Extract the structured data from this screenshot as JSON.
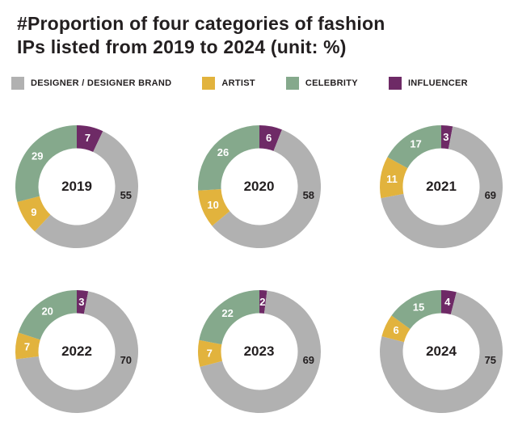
{
  "title": {
    "line1": "#Proportion of four categories of fashion",
    "line2": "IPs listed from 2019 to 2024 (unit: %)"
  },
  "legend": [
    {
      "key": "designer",
      "label": "DESIGNER / DESIGNER BRAND",
      "color": "#b1b1b1"
    },
    {
      "key": "artist",
      "label": "ARTIST",
      "color": "#e2b33d"
    },
    {
      "key": "celebrity",
      "label": "CELEBRITY",
      "color": "#85a98c"
    },
    {
      "key": "influencer",
      "label": "INFLUENCER",
      "color": "#6e2a66"
    }
  ],
  "chart_data": {
    "type": "pie",
    "subtype": "donut-grid",
    "unit": "%",
    "title": "#Proportion of four categories of fashion IPs listed from 2019 to 2024 (unit: %)",
    "categories": [
      "DESIGNER / DESIGNER BRAND",
      "ARTIST",
      "CELEBRITY",
      "INFLUENCER"
    ],
    "segment_order": [
      "influencer",
      "designer",
      "artist",
      "celebrity"
    ],
    "start_angle_deg": 0,
    "direction": "clockwise",
    "colors": {
      "designer": "#b1b1b1",
      "artist": "#e2b33d",
      "celebrity": "#85a98c",
      "influencer": "#6e2a66"
    },
    "value_label_colors": {
      "designer": "#231f20",
      "artist": "#ffffff",
      "celebrity": "#ffffff",
      "influencer": "#ffffff"
    },
    "charts": [
      {
        "year": "2019",
        "values": {
          "designer": 55,
          "artist": 9,
          "celebrity": 29,
          "influencer": 7
        }
      },
      {
        "year": "2020",
        "values": {
          "designer": 58,
          "artist": 10,
          "celebrity": 26,
          "influencer": 6
        }
      },
      {
        "year": "2021",
        "values": {
          "designer": 69,
          "artist": 11,
          "celebrity": 17,
          "influencer": 3
        }
      },
      {
        "year": "2022",
        "values": {
          "designer": 70,
          "artist": 7,
          "celebrity": 20,
          "influencer": 3
        }
      },
      {
        "year": "2023",
        "values": {
          "designer": 69,
          "artist": 7,
          "celebrity": 22,
          "influencer": 2
        }
      },
      {
        "year": "2024",
        "values": {
          "designer": 75,
          "artist": 6,
          "celebrity": 15,
          "influencer": 4
        }
      }
    ]
  }
}
